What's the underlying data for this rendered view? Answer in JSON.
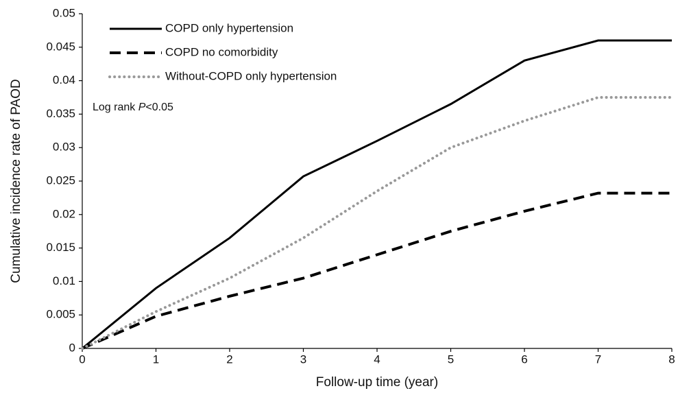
{
  "chart_data": {
    "type": "line",
    "x_label": "Follow-up time (year)",
    "y_label": "Cumulative incidence rate of PAOD",
    "annotation": [
      "Log rank ",
      "P",
      "<0.05"
    ],
    "x": [
      0,
      1,
      2,
      3,
      4,
      5,
      6,
      7,
      8
    ],
    "series": [
      {
        "name": "COPD only hypertension",
        "color": "#000000",
        "style": "solid",
        "values": [
          0,
          0.009,
          0.0165,
          0.0257,
          0.031,
          0.0365,
          0.043,
          0.046,
          0.046
        ]
      },
      {
        "name": "COPD no comorbidity",
        "color": "#000000",
        "style": "dashed",
        "values": [
          0,
          0.0048,
          0.0078,
          0.0105,
          0.014,
          0.0175,
          0.0205,
          0.0232,
          0.0232
        ]
      },
      {
        "name": "Without-COPD only hypertension",
        "color": "#999999",
        "style": "dotted",
        "values": [
          0,
          0.0055,
          0.0105,
          0.0165,
          0.0235,
          0.03,
          0.034,
          0.0375,
          0.0375
        ]
      }
    ],
    "xlim": [
      0,
      8
    ],
    "xticks": [
      0,
      1,
      2,
      3,
      4,
      5,
      6,
      7,
      8
    ],
    "ylim": [
      0,
      0.05
    ],
    "yticks": [
      0,
      0.005,
      0.01,
      0.015,
      0.02,
      0.025,
      0.03,
      0.035,
      0.04,
      0.045,
      0.05
    ],
    "grid": false
  }
}
